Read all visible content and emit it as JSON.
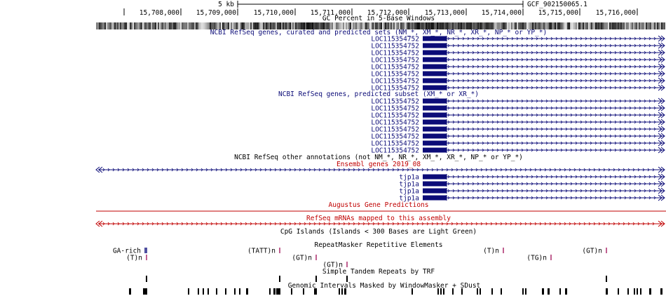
{
  "ruler": {
    "scale_label": "5 kb",
    "assembly": "GCF_902150065.1",
    "positions": [
      "15,708,000",
      "15,709,000",
      "15,710,000",
      "15,711,000",
      "15,712,000",
      "15,713,000",
      "15,714,000",
      "15,715,000",
      "15,716,000"
    ]
  },
  "tracks": {
    "gc_title": "GC Percent in 5-Base Windows",
    "refseq_all_title": "NCBI RefSeq genes, curated and predicted sets (NM_*, XM_*, NR_*, XR_*, NP_* or YP_*)",
    "refseq_all_genes": [
      "LOC115354752",
      "LOC115354752",
      "LOC115354752",
      "LOC115354752",
      "LOC115354752",
      "LOC115354752",
      "LOC115354752",
      "LOC115354752"
    ],
    "refseq_pred_title": "NCBI RefSeq genes, predicted subset (XM_* or XR_*)",
    "refseq_pred_genes": [
      "LOC115354752",
      "LOC115354752",
      "LOC115354752",
      "LOC115354752",
      "LOC115354752",
      "LOC115354752",
      "LOC115354752",
      "LOC115354752"
    ],
    "refseq_other_title": "NCBI RefSeq other annotations (not NM_*, NR_*, XM_*, XR_*, NP_* or YP_*)",
    "ensembl_title": "Ensembl genes 2019_08",
    "ensembl_genes": [
      "tjp1a",
      "tjp1a",
      "tjp1a",
      "tjp1a"
    ],
    "augustus_title": "Augustus Gene Predictions",
    "refseq_mrna_title": "RefSeq mRNAs mapped to this assembly",
    "cpg_title": "CpG Islands (Islands < 300 Bases are Light Green)",
    "repeatmasker_title": "RepeatMasker Repetitive Elements",
    "repeats": [
      "GA-rich",
      "(TATT)n",
      "(T)n",
      "(GT)n",
      "(T)n",
      "(GT)n",
      "(TG)n",
      "(GT)n"
    ],
    "trf_title": "Simple Tandem Repeats by TRF",
    "windowmasker_title": "Genomic Intervals Masked by WindowMasker + SDust"
  },
  "colors": {
    "gene_blue": "#0c0c78",
    "ensembl_red": "#c00000",
    "repeat_pink": "#c06090",
    "repeat_blue": "#5050a0",
    "text": "#000000"
  }
}
